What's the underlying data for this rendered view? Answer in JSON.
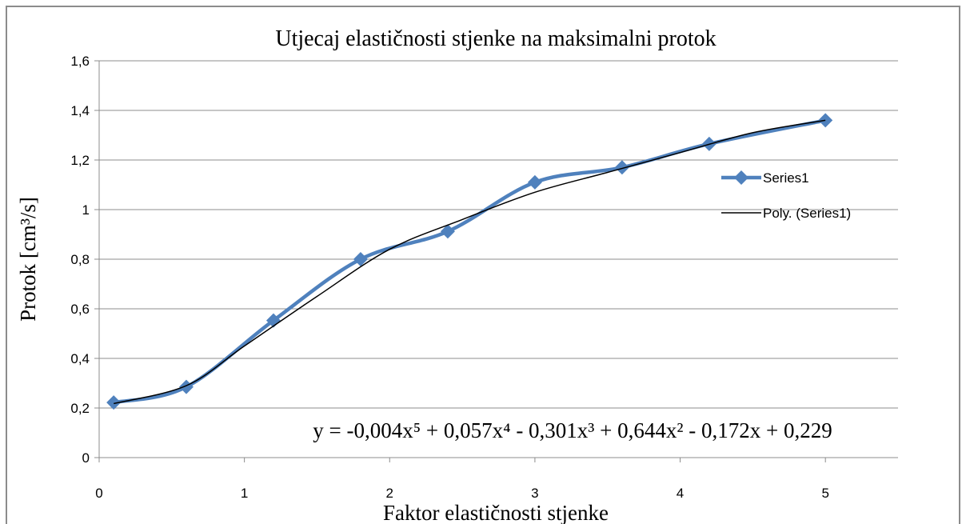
{
  "chart_data": {
    "type": "scatter",
    "title": "Utjecaj elastičnosti stjenke na maksimalni protok",
    "x_label": "Faktor elastičnosti stjenke",
    "y_label": "Protok [cm³/s]",
    "annotation": "y = -0,004x⁵ + 0,057x⁴ - 0,301x³ + 0,644x² - 0,172x + 0,229",
    "series": [
      {
        "name": "Series1",
        "color": "#4f81bd",
        "marker": "diamond",
        "x": [
          0.1,
          0.6,
          1.2,
          1.8,
          2.4,
          3.0,
          3.6,
          4.2,
          5.0
        ],
        "values": [
          0.222,
          0.285,
          0.553,
          0.8,
          0.912,
          1.11,
          1.17,
          1.265,
          1.36
        ]
      },
      {
        "name": "Poly. (Series1)",
        "color": "#000000",
        "marker": "none",
        "x": [
          0.1,
          0.6,
          1.0,
          1.5,
          2.0,
          2.5,
          3.0,
          3.5,
          4.0,
          4.5,
          5.0
        ],
        "values": [
          0.218,
          0.29,
          0.45,
          0.65,
          0.84,
          0.96,
          1.07,
          1.15,
          1.23,
          1.31,
          1.36
        ]
      }
    ],
    "xlim": [
      0,
      5.5
    ],
    "xticks": [
      0,
      1,
      2,
      3,
      4,
      5
    ],
    "ylim": [
      0,
      1.6
    ],
    "yticks": [
      0,
      {
        "value": 0.2,
        "label": "0,2"
      },
      {
        "value": 0.4,
        "label": "0,4"
      },
      {
        "value": 0.6,
        "label": "0,6"
      },
      {
        "value": 0.8,
        "label": "0,8"
      },
      1,
      {
        "value": 1.2,
        "label": "1,2"
      },
      {
        "value": 1.4,
        "label": "1,4"
      },
      {
        "value": 1.6,
        "label": "1,6"
      }
    ],
    "grid": true,
    "legend": "right"
  }
}
